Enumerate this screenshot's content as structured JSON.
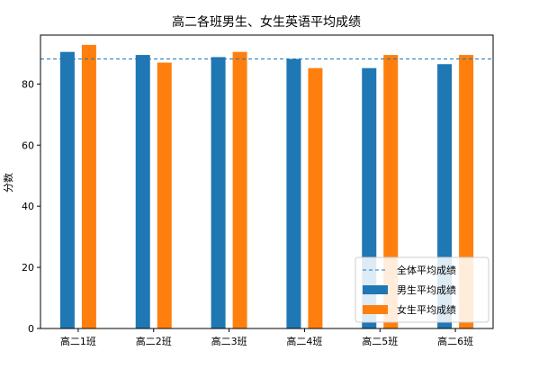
{
  "chart_data": {
    "type": "bar",
    "title": "高二各班男生、女生英语平均成绩",
    "xlabel": "",
    "ylabel": "分数",
    "categories": [
      "高二1班",
      "高二2班",
      "高二3班",
      "高二4班",
      "高二5班",
      "高二6班"
    ],
    "series": [
      {
        "name": "男生平均成绩",
        "color": "#1f77b4",
        "values": [
          90.5,
          89.5,
          88.8,
          88.2,
          85.2,
          86.5
        ]
      },
      {
        "name": "女生平均成绩",
        "color": "#ff7f0e",
        "values": [
          92.8,
          87.0,
          90.5,
          85.2,
          89.5,
          89.5
        ]
      }
    ],
    "reference_line": {
      "name": "全体平均成绩",
      "value": 88.2,
      "color": "#1f77b4",
      "style": "dashed"
    },
    "ylim": [
      0,
      96
    ],
    "yticks": [
      0,
      20,
      40,
      60,
      80
    ],
    "grid": false,
    "legend_position": "lower-right"
  }
}
